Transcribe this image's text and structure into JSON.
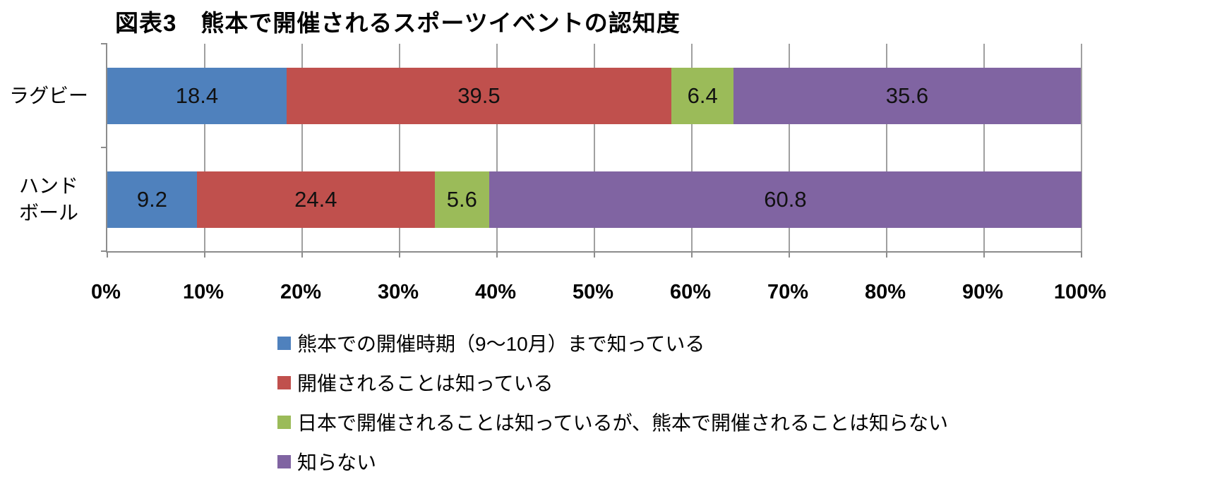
{
  "title": "図表3　熊本で開催されるスポーツイベントの認知度",
  "chart_data": {
    "type": "bar",
    "orientation": "horizontal",
    "stacked": true,
    "title": "図表3　熊本で開催されるスポーツイベントの認知度",
    "categories": [
      "ラグビー",
      "ハンドボール"
    ],
    "category_display": [
      [
        "ラグビー"
      ],
      [
        "ハンド",
        "ボール"
      ]
    ],
    "series": [
      {
        "name": "熊本での開催時期（9～10月）まで知っている",
        "color": "#4F81BD",
        "values": [
          18.4,
          9.2
        ]
      },
      {
        "name": "開催されることは知っている",
        "color": "#C0504D",
        "values": [
          39.5,
          24.4
        ]
      },
      {
        "name": "日本で開催されることは知っているが、熊本で開催されることは知らない",
        "color": "#9BBB59",
        "values": [
          6.4,
          5.6
        ]
      },
      {
        "name": "知らない",
        "color": "#8064A2",
        "values": [
          35.6,
          60.8
        ]
      }
    ],
    "xlim": [
      0,
      100
    ],
    "x_tick_labels": [
      "0%",
      "10%",
      "20%",
      "30%",
      "40%",
      "50%",
      "60%",
      "70%",
      "80%",
      "90%",
      "100%"
    ],
    "grid": true,
    "legend_position": "bottom",
    "axis_color": "#8c8c8c",
    "gridline_color": "#a0a0a0"
  }
}
